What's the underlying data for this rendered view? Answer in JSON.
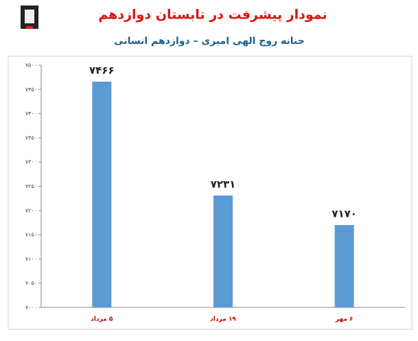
{
  "chart_data": {
    "type": "bar",
    "title": "نمودار پیشرفت در تابستان دوازدهم",
    "subtitle": "حنانه روح الهی امیری – دوازدهم انسانی",
    "categories": [
      "۵ مرداد",
      "۱۹ مرداد",
      "۶ مهر"
    ],
    "values": [
      7466,
      7231,
      7170
    ],
    "value_labels": [
      "۷۴۶۶",
      "۷۲۳۱",
      "۷۱۷۰"
    ],
    "color": "#5b9bd5",
    "ylim": [
      7000,
      7500
    ],
    "yticks": [
      {
        "value": 7000,
        "label": "۷۰۰۰"
      },
      {
        "value": 7050,
        "label": "۷۰۵۰"
      },
      {
        "value": 7100,
        "label": "۷۱۰۰"
      },
      {
        "value": 7150,
        "label": "۷۱۵۰"
      },
      {
        "value": 7200,
        "label": "۷۲۰۰"
      },
      {
        "value": 7250,
        "label": "۷۲۵۰"
      },
      {
        "value": 7300,
        "label": "۷۳۰۰"
      },
      {
        "value": 7350,
        "label": "۷۳۵۰"
      },
      {
        "value": 7400,
        "label": "۷۴۰۰"
      },
      {
        "value": 7450,
        "label": "۷۴۵۰"
      },
      {
        "value": 7500,
        "label": "۷۵۰۰"
      }
    ],
    "grid": false
  }
}
